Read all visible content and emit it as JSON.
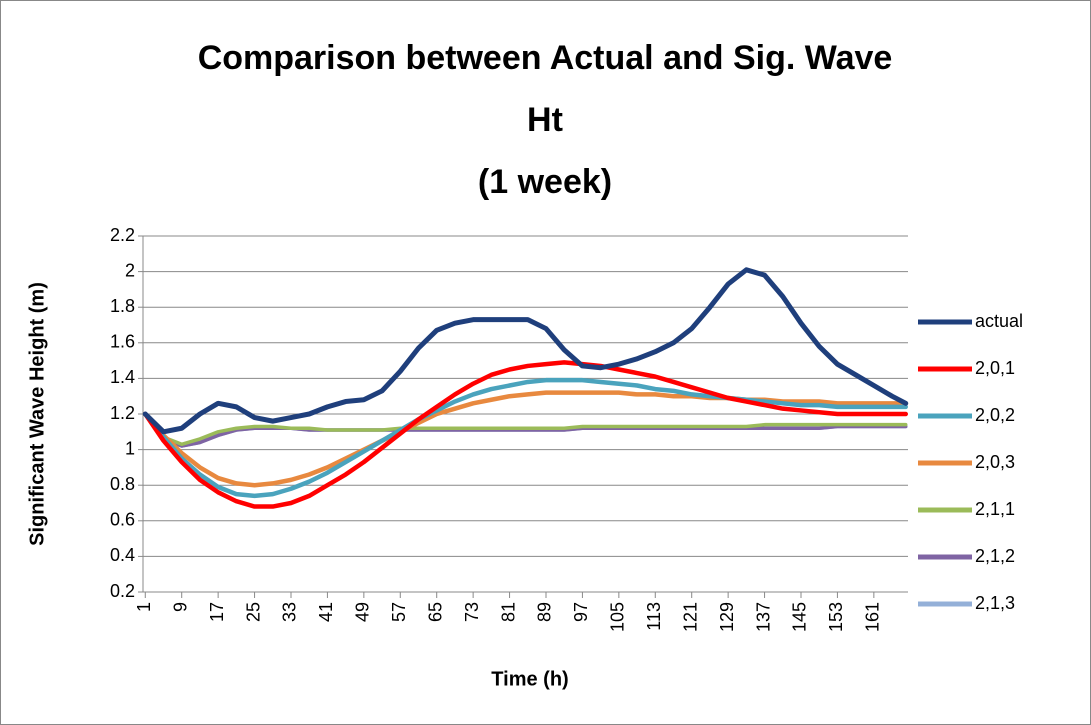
{
  "chart_data": {
    "type": "line",
    "title": [
      "Comparison between Actual and Sig. Wave",
      "Ht",
      "(1 week)"
    ],
    "x_label": "Time (h)",
    "y_label": "Significant Wave Height (m)",
    "x": [
      1,
      5,
      9,
      13,
      17,
      21,
      25,
      29,
      33,
      37,
      41,
      45,
      49,
      53,
      57,
      61,
      65,
      69,
      73,
      77,
      81,
      85,
      89,
      93,
      97,
      101,
      105,
      109,
      113,
      117,
      121,
      125,
      129,
      133,
      137,
      141,
      145,
      149,
      153,
      157,
      161,
      165,
      168
    ],
    "xlim": [
      0.5,
      168.5
    ],
    "xticks": [
      1,
      9,
      17,
      25,
      33,
      41,
      49,
      57,
      65,
      73,
      81,
      89,
      97,
      105,
      113,
      121,
      129,
      137,
      145,
      153,
      161
    ],
    "ylim": [
      0.2,
      2.2
    ],
    "yticks": [
      0.2,
      0.4,
      0.6,
      0.8,
      1,
      1.2,
      1.4,
      1.6,
      1.8,
      2,
      2.2
    ],
    "grid": true,
    "legend": "right",
    "series": [
      {
        "name": "actual",
        "color": "#1f3f7c",
        "values": [
          1.2,
          1.1,
          1.12,
          1.2,
          1.26,
          1.24,
          1.18,
          1.16,
          1.18,
          1.2,
          1.24,
          1.27,
          1.28,
          1.33,
          1.44,
          1.57,
          1.67,
          1.71,
          1.73,
          1.73,
          1.73,
          1.73,
          1.68,
          1.56,
          1.47,
          1.46,
          1.48,
          1.51,
          1.55,
          1.6,
          1.68,
          1.8,
          1.93,
          2.01,
          1.98,
          1.86,
          1.71,
          1.58,
          1.48,
          1.42,
          1.36,
          1.3,
          1.26
        ]
      },
      {
        "name": "2,0,1",
        "color": "#ff0000",
        "values": [
          1.2,
          1.05,
          0.93,
          0.83,
          0.76,
          0.71,
          0.68,
          0.68,
          0.7,
          0.74,
          0.8,
          0.86,
          0.93,
          1.01,
          1.09,
          1.17,
          1.24,
          1.31,
          1.37,
          1.42,
          1.45,
          1.47,
          1.48,
          1.49,
          1.48,
          1.47,
          1.45,
          1.43,
          1.41,
          1.38,
          1.35,
          1.32,
          1.29,
          1.27,
          1.25,
          1.23,
          1.22,
          1.21,
          1.2,
          1.2,
          1.2,
          1.2,
          1.2
        ]
      },
      {
        "name": "2,0,2",
        "color": "#4aa3bd",
        "values": [
          1.2,
          1.07,
          0.95,
          0.86,
          0.79,
          0.75,
          0.74,
          0.75,
          0.78,
          0.82,
          0.87,
          0.93,
          0.99,
          1.05,
          1.11,
          1.17,
          1.22,
          1.27,
          1.31,
          1.34,
          1.36,
          1.38,
          1.39,
          1.39,
          1.39,
          1.38,
          1.37,
          1.36,
          1.34,
          1.33,
          1.31,
          1.3,
          1.29,
          1.28,
          1.27,
          1.26,
          1.25,
          1.25,
          1.24,
          1.24,
          1.24,
          1.24,
          1.24
        ]
      },
      {
        "name": "2,0,3",
        "color": "#e8893f",
        "values": [
          1.2,
          1.08,
          0.98,
          0.9,
          0.84,
          0.81,
          0.8,
          0.81,
          0.83,
          0.86,
          0.9,
          0.95,
          1.0,
          1.05,
          1.1,
          1.15,
          1.2,
          1.23,
          1.26,
          1.28,
          1.3,
          1.31,
          1.32,
          1.32,
          1.32,
          1.32,
          1.32,
          1.31,
          1.31,
          1.3,
          1.3,
          1.29,
          1.29,
          1.28,
          1.28,
          1.27,
          1.27,
          1.27,
          1.26,
          1.26,
          1.26,
          1.26,
          1.26
        ]
      },
      {
        "name": "2,1,1",
        "color": "#9bbb59",
        "values": [
          1.2,
          1.07,
          1.03,
          1.06,
          1.1,
          1.12,
          1.13,
          1.13,
          1.12,
          1.12,
          1.11,
          1.11,
          1.11,
          1.11,
          1.12,
          1.12,
          1.12,
          1.12,
          1.12,
          1.12,
          1.12,
          1.12,
          1.12,
          1.12,
          1.13,
          1.13,
          1.13,
          1.13,
          1.13,
          1.13,
          1.13,
          1.13,
          1.13,
          1.13,
          1.14,
          1.14,
          1.14,
          1.14,
          1.14,
          1.14,
          1.14,
          1.14,
          1.14
        ]
      },
      {
        "name": "2,1,2",
        "color": "#7f64a3",
        "values": [
          1.2,
          1.06,
          1.02,
          1.04,
          1.08,
          1.11,
          1.12,
          1.12,
          1.12,
          1.11,
          1.11,
          1.11,
          1.11,
          1.11,
          1.11,
          1.11,
          1.11,
          1.11,
          1.11,
          1.11,
          1.11,
          1.11,
          1.11,
          1.11,
          1.12,
          1.12,
          1.12,
          1.12,
          1.12,
          1.12,
          1.12,
          1.12,
          1.12,
          1.12,
          1.12,
          1.12,
          1.12,
          1.12,
          1.13,
          1.13,
          1.13,
          1.13,
          1.13
        ]
      },
      {
        "name": "2,1,3",
        "color": "#94b0d8",
        "values": [
          1.2,
          1.06,
          1.02,
          1.04,
          1.08,
          1.11,
          1.12,
          1.12,
          1.12,
          1.11,
          1.11,
          1.11,
          1.11,
          1.11,
          1.11,
          1.11,
          1.11,
          1.11,
          1.11,
          1.11,
          1.11,
          1.11,
          1.11,
          1.11,
          1.12,
          1.12,
          1.12,
          1.12,
          1.12,
          1.12,
          1.12,
          1.12,
          1.12,
          1.12,
          1.12,
          1.12,
          1.12,
          1.12,
          1.13,
          1.13,
          1.13,
          1.13,
          1.13
        ]
      }
    ]
  }
}
